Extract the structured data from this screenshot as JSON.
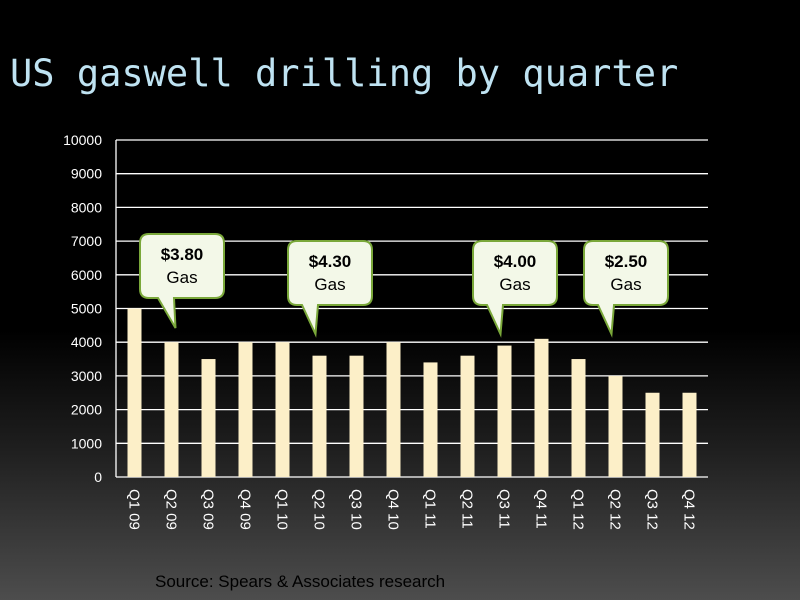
{
  "title": "US gaswell drilling by quarter",
  "source": "Source:  Spears & Associates research",
  "colors": {
    "bar": "#fcefc8",
    "bubble_fill": "#f3f8e8",
    "bubble_stroke": "#7aa83a",
    "title": "#bfe3f2"
  },
  "chart_data": {
    "type": "bar",
    "categories": [
      "Q1 09",
      "Q2 09",
      "Q3 09",
      "Q4 09",
      "Q1 10",
      "Q2 10",
      "Q3 10",
      "Q4 10",
      "Q1 11",
      "Q2 11",
      "Q3 11",
      "Q4 11",
      "Q1 12",
      "Q2 12",
      "Q3 12",
      "Q4 12"
    ],
    "values": [
      5000,
      4000,
      3500,
      4000,
      4000,
      3600,
      3600,
      4000,
      3400,
      3600,
      3900,
      4100,
      3500,
      3000,
      2500,
      2500
    ],
    "ylim": [
      0,
      10000
    ],
    "yticks": [
      0,
      1000,
      2000,
      3000,
      4000,
      5000,
      6000,
      7000,
      8000,
      9000,
      10000
    ],
    "grid": true,
    "annotations": [
      {
        "line1": "$3.80",
        "line2": "Gas",
        "category": "Q2 09"
      },
      {
        "line1": "$4.30",
        "line2": "Gas",
        "category": "Q2 10"
      },
      {
        "line1": "$4.00",
        "line2": "Gas",
        "category": "Q3 11"
      },
      {
        "line1": "$2.50",
        "line2": "Gas",
        "category": "Q2 12"
      }
    ]
  }
}
